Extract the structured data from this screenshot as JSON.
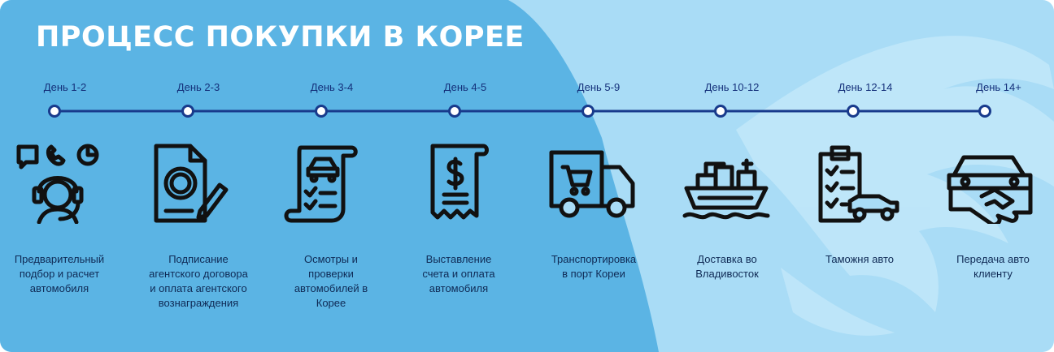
{
  "title": "ПРОЦЕСС ПОКУПКИ В КОРЕЕ",
  "colors": {
    "background": "#a9dcf6",
    "dark_panel": "#5bb4e4",
    "timeline": "#183a8c",
    "icon": "#111111",
    "title": "#ffffff"
  },
  "steps": [
    {
      "day": "День 1-2",
      "icon": "consultant-headset-icon",
      "label_lines": [
        "Предварительный",
        "подбор и расчет",
        "автомобиля"
      ]
    },
    {
      "day": "День 2-3",
      "icon": "contract-signing-icon",
      "label_lines": [
        "Подписание",
        "агентского договора",
        "и оплата агентского",
        "вознаграждения"
      ]
    },
    {
      "day": "День 3-4",
      "icon": "inspection-checklist-icon",
      "label_lines": [
        "Осмотры и",
        "проверки",
        "автомобилей в",
        "Корее"
      ]
    },
    {
      "day": "День 4-5",
      "icon": "invoice-receipt-icon",
      "label_lines": [
        "Выставление",
        "счета и оплата",
        "автомобиля"
      ]
    },
    {
      "day": "День 5-9",
      "icon": "delivery-truck-icon",
      "label_lines": [
        "Транспортировка",
        "в порт Кореи"
      ]
    },
    {
      "day": "День 10-12",
      "icon": "cargo-ship-icon",
      "label_lines": [
        "Доставка во",
        "Владивосток"
      ]
    },
    {
      "day": "День 12-14",
      "icon": "customs-clipboard-icon",
      "label_lines": [
        "Таможня авто"
      ]
    },
    {
      "day": "День 14+",
      "icon": "car-handover-icon",
      "label_lines": [
        "Передача авто",
        "клиенту"
      ]
    }
  ]
}
